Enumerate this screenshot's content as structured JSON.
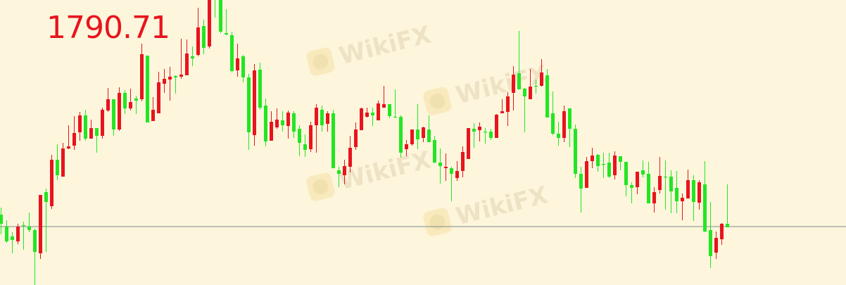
{
  "current_price_label": "1790.71",
  "watermark": "WikiFX",
  "colors": {
    "background": "#fdf6dc",
    "up": "#e8141e",
    "down": "#22e622",
    "price_line": "#7f8a8a"
  },
  "chart_data": {
    "type": "candlestick",
    "title": "",
    "xlabel": "",
    "ylabel": "",
    "ylim": [
      1782.41,
      1822.91
    ],
    "grid": false,
    "price_line": 1790.71,
    "candle_format": [
      "open",
      "high",
      "low",
      "close"
    ],
    "candles": [
      [
        1792.41,
        1793.41,
        1789.61,
        1791.11
      ],
      [
        1790.71,
        1791.61,
        1788.41,
        1788.61
      ],
      [
        1789.31,
        1789.91,
        1786.91,
        1788.81
      ],
      [
        1788.61,
        1791.11,
        1788.21,
        1790.71
      ],
      [
        1790.91,
        1791.41,
        1787.41,
        1790.81
      ],
      [
        1790.71,
        1792.71,
        1789.91,
        1790.21
      ],
      [
        1790.21,
        1790.41,
        1782.41,
        1787.11
      ],
      [
        1786.91,
        1795.21,
        1786.11,
        1795.21
      ],
      [
        1795.61,
        1796.11,
        1787.11,
        1794.21
      ],
      [
        1793.61,
        1800.91,
        1793.21,
        1800.21
      ],
      [
        1800.21,
        1802.41,
        1797.31,
        1798.01
      ],
      [
        1797.81,
        1802.61,
        1797.81,
        1801.81
      ],
      [
        1801.81,
        1805.11,
        1801.71,
        1802.11
      ],
      [
        1802.21,
        1806.41,
        1801.61,
        1804.01
      ],
      [
        1804.11,
        1807.01,
        1802.91,
        1806.51
      ],
      [
        1806.51,
        1807.31,
        1802.91,
        1803.21
      ],
      [
        1803.21,
        1805.91,
        1803.21,
        1804.71
      ],
      [
        1804.71,
        1804.71,
        1801.21,
        1803.61
      ],
      [
        1803.61,
        1807.61,
        1803.21,
        1807.31
      ],
      [
        1807.21,
        1810.41,
        1807.01,
        1808.81
      ],
      [
        1808.81,
        1808.81,
        1803.61,
        1804.51
      ],
      [
        1804.51,
        1810.51,
        1804.31,
        1809.71
      ],
      [
        1809.71,
        1810.11,
        1806.71,
        1807.51
      ],
      [
        1807.51,
        1810.31,
        1807.21,
        1808.41
      ],
      [
        1808.91,
        1809.31,
        1806.71,
        1808.61
      ],
      [
        1808.81,
        1816.71,
        1808.51,
        1815.21
      ],
      [
        1815.01,
        1815.01,
        1805.51,
        1805.51
      ],
      [
        1805.71,
        1809.11,
        1805.71,
        1807.31
      ],
      [
        1806.81,
        1812.71,
        1806.81,
        1811.21
      ],
      [
        1811.01,
        1813.11,
        1809.71,
        1811.71
      ],
      [
        1811.61,
        1813.41,
        1808.61,
        1812.01
      ],
      [
        1812.11,
        1812.21,
        1809.61,
        1811.91
      ],
      [
        1812.01,
        1817.41,
        1811.71,
        1812.31
      ],
      [
        1812.21,
        1817.31,
        1812.21,
        1815.31
      ],
      [
        1814.91,
        1816.31,
        1813.51,
        1814.61
      ],
      [
        1815.11,
        1821.81,
        1814.91,
        1819.01
      ],
      [
        1819.21,
        1820.11,
        1815.21,
        1816.11
      ],
      [
        1816.31,
        1823.41,
        1816.01,
        1822.91
      ],
      [
        1823.91,
        1824.91,
        1820.41,
        1823.41
      ],
      [
        1822.91,
        1823.41,
        1818.21,
        1818.41
      ],
      [
        1818.21,
        1821.61,
        1817.91,
        1818.01
      ],
      [
        1817.91,
        1818.41,
        1812.61,
        1812.81
      ],
      [
        1812.91,
        1816.71,
        1812.01,
        1814.61
      ],
      [
        1814.91,
        1815.11,
        1811.21,
        1811.91
      ],
      [
        1811.91,
        1812.41,
        1801.61,
        1804.11
      ],
      [
        1803.71,
        1813.81,
        1802.21,
        1812.91
      ],
      [
        1813.01,
        1814.01,
        1807.31,
        1807.61
      ],
      [
        1807.91,
        1808.91,
        1802.11,
        1802.81
      ],
      [
        1802.91,
        1807.11,
        1802.91,
        1805.61
      ],
      [
        1804.81,
        1807.51,
        1804.61,
        1805.91
      ],
      [
        1805.81,
        1807.11,
        1804.21,
        1805.11
      ],
      [
        1805.01,
        1807.21,
        1803.21,
        1806.91
      ],
      [
        1806.81,
        1807.11,
        1803.31,
        1804.21
      ],
      [
        1804.61,
        1805.11,
        1800.71,
        1802.61
      ],
      [
        1802.41,
        1803.81,
        1800.61,
        1801.61
      ],
      [
        1801.71,
        1805.61,
        1801.31,
        1805.11
      ],
      [
        1805.11,
        1808.11,
        1801.21,
        1807.61
      ],
      [
        1807.31,
        1807.91,
        1804.21,
        1805.11
      ],
      [
        1805.31,
        1807.11,
        1804.21,
        1806.81
      ],
      [
        1806.81,
        1807.31,
        1799.01,
        1799.01
      ],
      [
        1798.71,
        1799.21,
        1796.31,
        1798.21
      ],
      [
        1798.01,
        1800.21,
        1796.71,
        1799.31
      ],
      [
        1799.21,
        1803.61,
        1798.41,
        1801.91
      ],
      [
        1802.01,
        1805.51,
        1801.61,
        1804.51
      ],
      [
        1804.41,
        1807.61,
        1804.41,
        1807.51
      ],
      [
        1806.31,
        1807.61,
        1806.21,
        1806.91
      ],
      [
        1806.91,
        1807.61,
        1805.01,
        1806.51
      ],
      [
        1805.81,
        1808.61,
        1805.81,
        1808.21
      ],
      [
        1807.61,
        1810.71,
        1807.61,
        1808.11
      ],
      [
        1808.11,
        1808.11,
        1806.11,
        1806.41
      ],
      [
        1806.31,
        1810.21,
        1806.21,
        1806.21
      ],
      [
        1806.31,
        1806.51,
        1800.51,
        1801.21
      ],
      [
        1801.71,
        1803.01,
        1800.71,
        1802.41
      ],
      [
        1802.41,
        1804.51,
        1802.21,
        1804.51
      ],
      [
        1804.51,
        1808.11,
        1801.71,
        1803.11
      ],
      [
        1803.31,
        1804.91,
        1802.71,
        1804.81
      ],
      [
        1804.51,
        1806.51,
        1802.71,
        1802.71
      ],
      [
        1803.01,
        1803.61,
        1799.71,
        1799.81
      ],
      [
        1799.81,
        1801.81,
        1796.81,
        1799.31
      ],
      [
        1799.01,
        1801.11,
        1797.21,
        1799.21
      ],
      [
        1799.01,
        1799.21,
        1794.31,
        1798.21
      ],
      [
        1797.61,
        1800.01,
        1797.21,
        1798.61
      ],
      [
        1798.61,
        1802.11,
        1797.71,
        1801.31
      ],
      [
        1800.31,
        1804.71,
        1800.31,
        1804.71
      ],
      [
        1804.61,
        1805.41,
        1801.91,
        1804.21
      ],
      [
        1804.41,
        1805.51,
        1802.81,
        1804.91
      ],
      [
        1804.21,
        1804.71,
        1802.51,
        1804.11
      ],
      [
        1804.21,
        1804.61,
        1803.01,
        1803.31
      ],
      [
        1803.31,
        1806.71,
        1803.31,
        1806.61
      ],
      [
        1806.81,
        1808.81,
        1806.81,
        1807.11
      ],
      [
        1807.01,
        1809.81,
        1805.01,
        1809.21
      ],
      [
        1809.71,
        1813.51,
        1807.21,
        1812.31
      ],
      [
        1812.51,
        1818.51,
        1810.21,
        1810.21
      ],
      [
        1810.31,
        1810.41,
        1804.11,
        1809.21
      ],
      [
        1808.81,
        1813.11,
        1808.81,
        1810.61
      ],
      [
        1810.71,
        1811.61,
        1809.61,
        1810.61
      ],
      [
        1810.71,
        1814.51,
        1810.61,
        1812.61
      ],
      [
        1812.21,
        1813.11,
        1806.21,
        1806.21
      ],
      [
        1806.81,
        1809.91,
        1803.71,
        1803.91
      ],
      [
        1803.91,
        1805.61,
        1802.21,
        1803.31
      ],
      [
        1803.31,
        1807.91,
        1802.71,
        1807.11
      ],
      [
        1807.51,
        1807.51,
        1802.01,
        1804.61
      ],
      [
        1804.61,
        1805.21,
        1797.61,
        1798.21
      ],
      [
        1798.21,
        1799.21,
        1792.71,
        1796.11
      ],
      [
        1796.21,
        1800.61,
        1796.21,
        1800.01
      ],
      [
        1800.01,
        1801.91,
        1799.01,
        1800.81
      ],
      [
        1800.91,
        1801.01,
        1798.51,
        1799.31
      ],
      [
        1799.61,
        1801.21,
        1797.61,
        1799.51
      ],
      [
        1799.81,
        1801.21,
        1797.61,
        1797.81
      ],
      [
        1798.01,
        1801.41,
        1797.41,
        1800.81
      ],
      [
        1800.71,
        1800.71,
        1798.71,
        1799.91
      ],
      [
        1799.91,
        1799.91,
        1795.01,
        1796.61
      ],
      [
        1796.61,
        1797.01,
        1794.01,
        1796.21
      ],
      [
        1796.31,
        1798.51,
        1795.31,
        1798.51
      ],
      [
        1798.71,
        1800.11,
        1797.71,
        1798.11
      ],
      [
        1798.21,
        1799.91,
        1794.01,
        1794.01
      ],
      [
        1794.01,
        1796.31,
        1792.71,
        1795.61
      ],
      [
        1795.91,
        1800.61,
        1795.41,
        1797.91
      ],
      [
        1797.81,
        1800.11,
        1793.11,
        1797.71
      ],
      [
        1797.81,
        1798.71,
        1792.61,
        1795.71
      ],
      [
        1796.21,
        1798.61,
        1792.61,
        1794.31
      ],
      [
        1794.31,
        1795.41,
        1791.61,
        1794.81
      ],
      [
        1794.71,
        1798.81,
        1794.71,
        1797.31
      ],
      [
        1797.31,
        1798.01,
        1791.51,
        1794.21
      ],
      [
        1794.11,
        1797.31,
        1793.11,
        1797.01
      ],
      [
        1796.71,
        1800.01,
        1789.91,
        1790.01
      ],
      [
        1790.21,
        1794.21,
        1784.81,
        1786.51
      ],
      [
        1787.01,
        1790.01,
        1786.11,
        1789.11
      ],
      [
        1788.91,
        1791.21,
        1788.11,
        1791.11
      ],
      [
        1791.11,
        1796.71,
        1790.61,
        1790.61
      ]
    ]
  }
}
